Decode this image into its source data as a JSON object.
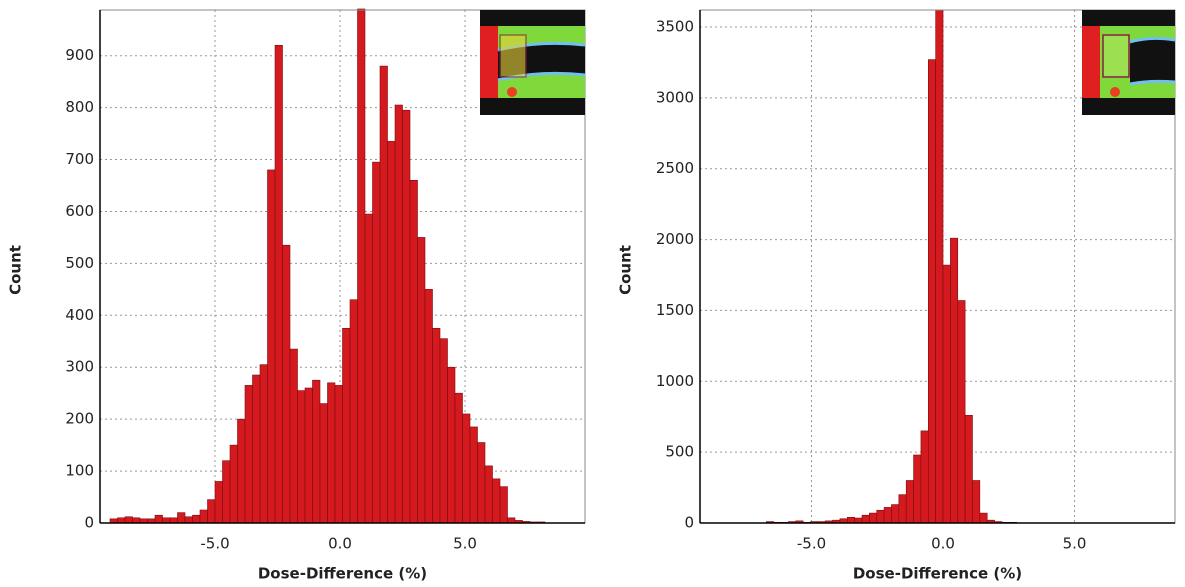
{
  "chart_data": [
    {
      "type": "histogram",
      "xlabel": "Dose-Difference (%)",
      "ylabel": "Count",
      "color": "#d41a1f",
      "bins": [
        -9.2,
        -8.9,
        -8.6,
        -8.3,
        -8.0,
        -7.7,
        -7.4,
        -7.1,
        -6.8,
        -6.5,
        -6.2,
        -5.9,
        -5.6,
        -5.3,
        -5.0,
        -4.7,
        -4.4,
        -4.1,
        -3.8,
        -3.5,
        -3.2,
        -2.9,
        -2.6,
        -2.3,
        -2.0,
        -1.7,
        -1.4,
        -1.1,
        -0.8,
        -0.5,
        -0.2,
        0.1,
        0.4,
        0.7,
        1.0,
        1.3,
        1.6,
        1.9,
        2.2,
        2.5,
        2.8,
        3.1,
        3.4,
        3.7,
        4.0,
        4.3,
        4.6,
        4.9,
        5.2,
        5.5,
        5.8,
        6.1,
        6.4,
        6.7,
        7.0,
        7.3,
        7.6,
        7.9,
        8.2
      ],
      "values": [
        8,
        10,
        12,
        10,
        8,
        8,
        15,
        10,
        10,
        20,
        12,
        15,
        25,
        45,
        80,
        120,
        150,
        200,
        265,
        285,
        305,
        680,
        920,
        535,
        335,
        255,
        260,
        275,
        230,
        270,
        265,
        375,
        430,
        990,
        595,
        695,
        880,
        735,
        805,
        795,
        660,
        550,
        450,
        375,
        355,
        300,
        250,
        210,
        185,
        155,
        110,
        85,
        70,
        10,
        5,
        3,
        2,
        2
      ],
      "xlim": [
        -9.6,
        9.8
      ],
      "ylim": [
        0,
        988
      ],
      "xticks": [
        {
          "value": -5,
          "label": "-5.0"
        },
        {
          "value": 0,
          "label": "0.0"
        },
        {
          "value": 5,
          "label": "5.0"
        }
      ],
      "yticks": [
        0,
        100,
        200,
        300,
        400,
        500,
        600,
        700,
        800,
        900
      ],
      "grid": true
    },
    {
      "type": "histogram",
      "xlabel": "Dose-Difference (%)",
      "ylabel": "Count",
      "color": "#d41a1f",
      "bins": [
        -6.72,
        -6.44,
        -6.16,
        -5.88,
        -5.6,
        -5.32,
        -5.04,
        -4.76,
        -4.48,
        -4.2,
        -3.92,
        -3.64,
        -3.36,
        -3.08,
        -2.8,
        -2.52,
        -2.24,
        -1.96,
        -1.68,
        -1.4,
        -1.12,
        -0.84,
        -0.56,
        -0.28,
        0.0,
        0.28,
        0.56,
        0.84,
        1.12,
        1.4,
        1.68,
        1.96,
        2.24,
        2.52,
        2.8
      ],
      "values": [
        10,
        5,
        5,
        10,
        15,
        5,
        10,
        10,
        15,
        20,
        30,
        40,
        35,
        55,
        70,
        90,
        110,
        130,
        200,
        300,
        480,
        650,
        3270,
        3620,
        1820,
        2010,
        1570,
        760,
        300,
        70,
        20,
        10,
        5,
        5
      ],
      "xlim": [
        -9.24,
        8.82
      ],
      "ylim": [
        0,
        3620
      ],
      "xticks": [
        {
          "value": -5,
          "label": "-5.0"
        },
        {
          "value": 0,
          "label": "0.0"
        },
        {
          "value": 5,
          "label": "5.0"
        }
      ],
      "yticks": [
        0,
        500,
        1000,
        1500,
        2000,
        2500,
        3000,
        3500
      ],
      "grid": true
    }
  ]
}
